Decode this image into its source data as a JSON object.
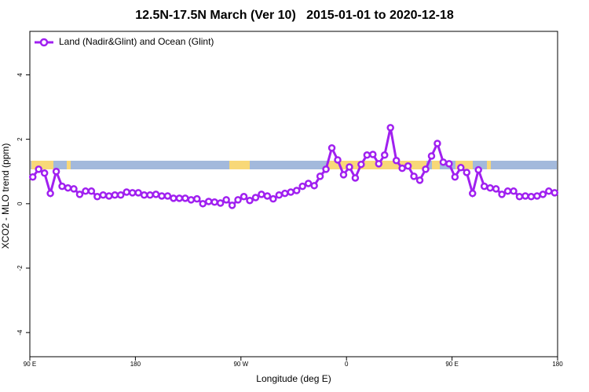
{
  "chart_data": {
    "type": "line",
    "title": "12.5N-17.5N March (Ver 10)   2015-01-01 to 2020-12-18",
    "x_label": "Longitude (deg E)",
    "y_label": "XCO2 - MLO trend (ppm)",
    "xlim": [
      90,
      540
    ],
    "ylim": [
      -4.75,
      5.35
    ],
    "xticks": [
      {
        "value": 90,
        "label": "90 E"
      },
      180,
      {
        "value": 270,
        "label": "90 W"
      },
      {
        "value": 360,
        "label": "0"
      },
      {
        "value": 450,
        "label": "90 E"
      },
      {
        "value": 540,
        "label": "180"
      }
    ],
    "yticks": [
      -4,
      -2,
      0,
      2,
      4
    ],
    "legend": "top-left",
    "x": [
      92.5,
      97.5,
      102.5,
      107.5,
      112.5,
      117.5,
      122.5,
      127.5,
      132.5,
      137.5,
      142.5,
      147.5,
      152.5,
      157.5,
      162.5,
      167.5,
      172.5,
      177.5,
      182.5,
      187.5,
      192.5,
      197.5,
      202.5,
      207.5,
      212.5,
      217.5,
      222.5,
      227.5,
      232.5,
      237.5,
      242.5,
      247.5,
      252.5,
      257.5,
      262.5,
      267.5,
      272.5,
      277.5,
      282.5,
      287.5,
      292.5,
      297.5,
      302.5,
      307.5,
      312.5,
      317.5,
      322.5,
      327.5,
      332.5,
      337.5,
      342.5,
      347.5,
      352.5,
      357.5,
      362.5,
      367.5,
      372.5,
      377.5,
      382.5,
      387.5,
      392.5,
      397.5,
      402.5,
      407.5,
      412.5,
      417.5,
      422.5,
      427.5,
      432.5,
      437.5,
      442.5,
      447.5,
      452.5,
      457.5,
      462.5,
      467.5,
      472.5,
      477.5,
      482.5,
      487.5,
      492.5,
      497.5,
      502.5,
      507.5,
      512.5,
      517.5,
      522.5,
      527.5,
      532.5,
      537.5
    ],
    "series": [
      {
        "name": "Land (Nadir&Glint) and Ocean (Glint)",
        "color": "#a020f0",
        "values": [
          0.83,
          1.07,
          0.95,
          0.32,
          1.0,
          0.54,
          0.49,
          0.46,
          0.29,
          0.39,
          0.39,
          0.22,
          0.27,
          0.24,
          0.27,
          0.27,
          0.36,
          0.34,
          0.34,
          0.27,
          0.27,
          0.29,
          0.24,
          0.24,
          0.17,
          0.17,
          0.17,
          0.12,
          0.15,
          0.0,
          0.07,
          0.05,
          0.02,
          0.12,
          -0.05,
          0.12,
          0.22,
          0.1,
          0.19,
          0.29,
          0.24,
          0.15,
          0.27,
          0.32,
          0.36,
          0.41,
          0.54,
          0.63,
          0.56,
          0.85,
          1.07,
          1.73,
          1.36,
          0.9,
          1.14,
          0.8,
          1.22,
          1.51,
          1.53,
          1.24,
          1.51,
          2.36,
          1.34,
          1.1,
          1.17,
          0.85,
          0.73,
          1.07,
          1.48,
          1.87,
          1.29,
          1.24,
          0.83,
          1.12,
          0.97,
          0.32,
          1.05,
          0.54,
          0.49,
          0.46,
          0.29,
          0.39,
          0.39,
          0.22,
          0.24,
          0.22,
          0.24,
          0.29,
          0.39,
          0.34
        ]
      }
    ]
  }
}
